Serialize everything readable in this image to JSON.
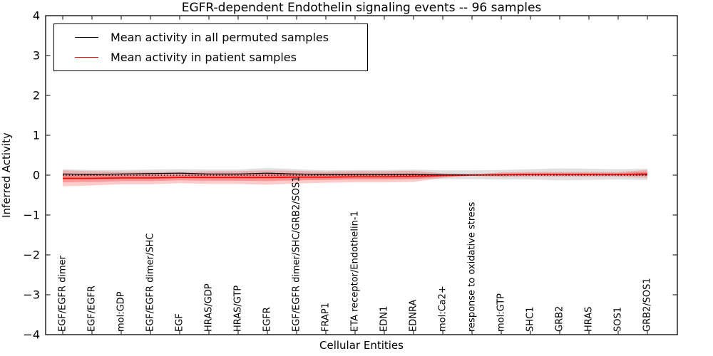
{
  "title": "EGFR-dependent Endothelin signaling events -- 96 samples",
  "axes": {
    "xlabel": "Cellular Entities",
    "ylabel": "Inferred Activity",
    "yticks": [
      "4",
      "3",
      "2",
      "1",
      "0",
      "−1",
      "−2",
      "−3",
      "−4"
    ],
    "ylim": [
      -4,
      4
    ]
  },
  "legend": {
    "items": [
      {
        "label": "Mean activity in all permuted samples",
        "color": "#000000"
      },
      {
        "label": "Mean activity in patient samples",
        "color": "#ff0000"
      }
    ]
  },
  "chart_data": {
    "type": "line",
    "title": "EGFR-dependent Endothelin signaling events -- 96 samples",
    "xlabel": "Cellular Entities",
    "ylabel": "Inferred Activity",
    "ylim": [
      -4,
      4
    ],
    "grid": false,
    "legend_position": "upper left",
    "zero_reference_line": 0,
    "categories": [
      "EGF/EGFR dimer",
      "EGF/EGFR",
      "mol:GDP",
      "EGF/EGFR dimer/SHC",
      "EGF",
      "HRAS/GDP",
      "HRAS/GTP",
      "EGFR",
      "EGF/EGFR dimer/SHC/GRB2/SOS1",
      "FRAP1",
      "ETA receptor/Endothelin-1",
      "EDN1",
      "EDNRA",
      "mol:Ca2+",
      "response to oxidative stress",
      "mol:GTP",
      "SHC1",
      "GRB2",
      "HRAS",
      "SOS1",
      "GRB2/SOS1"
    ],
    "series": [
      {
        "name": "Mean activity in all permuted samples",
        "color": "#000000",
        "style": "solid",
        "values": [
          0.03,
          0.02,
          0.03,
          0.04,
          0.05,
          0.03,
          0.03,
          0.05,
          0.03,
          0.02,
          0.02,
          0.02,
          0.02,
          0.01,
          0.01,
          0.01,
          0.02,
          0.02,
          0.02,
          0.02,
          0.02
        ]
      },
      {
        "name": "Mean activity in patient samples",
        "color": "#ff0000",
        "style": "solid",
        "values": [
          -0.08,
          -0.08,
          -0.07,
          -0.07,
          -0.06,
          -0.06,
          -0.06,
          -0.06,
          -0.05,
          -0.05,
          -0.04,
          -0.04,
          -0.03,
          -0.01,
          0.0,
          0.01,
          0.02,
          0.02,
          0.02,
          0.02,
          0.03
        ]
      }
    ],
    "bands": [
      {
        "name": "permuted-samples-std-band",
        "color": "#000000",
        "opacity": 0.12,
        "upper": [
          0.15,
          0.13,
          0.13,
          0.14,
          0.15,
          0.14,
          0.14,
          0.18,
          0.15,
          0.12,
          0.13,
          0.13,
          0.14,
          0.12,
          0.12,
          0.13,
          0.15,
          0.17,
          0.16,
          0.15,
          0.16
        ],
        "lower": [
          -0.11,
          -0.11,
          -0.09,
          -0.08,
          -0.07,
          -0.1,
          -0.1,
          -0.1,
          -0.11,
          -0.1,
          -0.09,
          -0.09,
          -0.1,
          -0.1,
          -0.1,
          -0.11,
          -0.11,
          -0.13,
          -0.12,
          -0.11,
          -0.12
        ]
      },
      {
        "name": "patient-samples-outer-band",
        "color": "#ff0000",
        "opacity": 0.2,
        "upper": [
          0.12,
          0.1,
          0.09,
          0.09,
          0.08,
          0.1,
          0.1,
          0.12,
          0.11,
          0.09,
          0.1,
          0.1,
          0.11,
          0.05,
          0.02,
          0.07,
          0.08,
          0.08,
          0.08,
          0.08,
          0.13
        ],
        "lower": [
          -0.28,
          -0.26,
          -0.23,
          -0.23,
          -0.2,
          -0.22,
          -0.22,
          -0.24,
          -0.21,
          -0.19,
          -0.18,
          -0.18,
          -0.17,
          -0.07,
          -0.02,
          -0.05,
          -0.04,
          -0.04,
          -0.04,
          -0.04,
          -0.07
        ]
      },
      {
        "name": "patient-samples-inner-band",
        "color": "#ff0000",
        "opacity": 0.25,
        "upper": [
          0.02,
          0.01,
          0.01,
          0.01,
          0.01,
          0.02,
          0.02,
          0.03,
          0.03,
          0.02,
          0.03,
          0.03,
          0.04,
          0.02,
          0.01,
          0.04,
          0.05,
          0.05,
          0.05,
          0.05,
          0.08
        ],
        "lower": [
          -0.18,
          -0.17,
          -0.15,
          -0.15,
          -0.13,
          -0.14,
          -0.14,
          -0.15,
          -0.13,
          -0.12,
          -0.11,
          -0.11,
          -0.1,
          -0.04,
          -0.01,
          -0.02,
          -0.01,
          -0.01,
          -0.01,
          -0.01,
          -0.02
        ]
      }
    ]
  }
}
